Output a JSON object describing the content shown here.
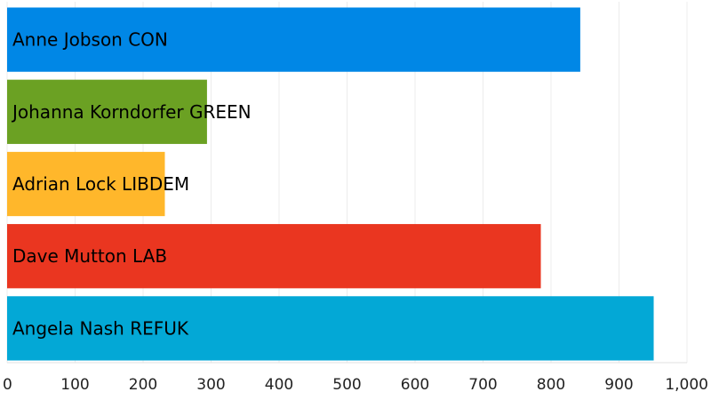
{
  "chart_data": {
    "type": "bar",
    "orientation": "horizontal",
    "title": "",
    "xlabel": "",
    "ylabel": "",
    "categories": [
      "Anne Jobson CON",
      "Johanna Korndorfer GREEN",
      "Adrian Lock LIBDEM",
      "Dave Mutton LAB",
      "Angela Nash REFUK"
    ],
    "values": [
      843,
      294,
      232,
      785,
      951
    ],
    "colors": [
      "#0087e6",
      "#6ba123",
      "#ffb72b",
      "#ea3620",
      "#03a8d6"
    ],
    "xlim": [
      0,
      1000
    ],
    "xticks": [
      "0",
      "100",
      "200",
      "300",
      "400",
      "500",
      "600",
      "700",
      "800",
      "900",
      "1,000"
    ],
    "grid": true,
    "legend": "none"
  }
}
